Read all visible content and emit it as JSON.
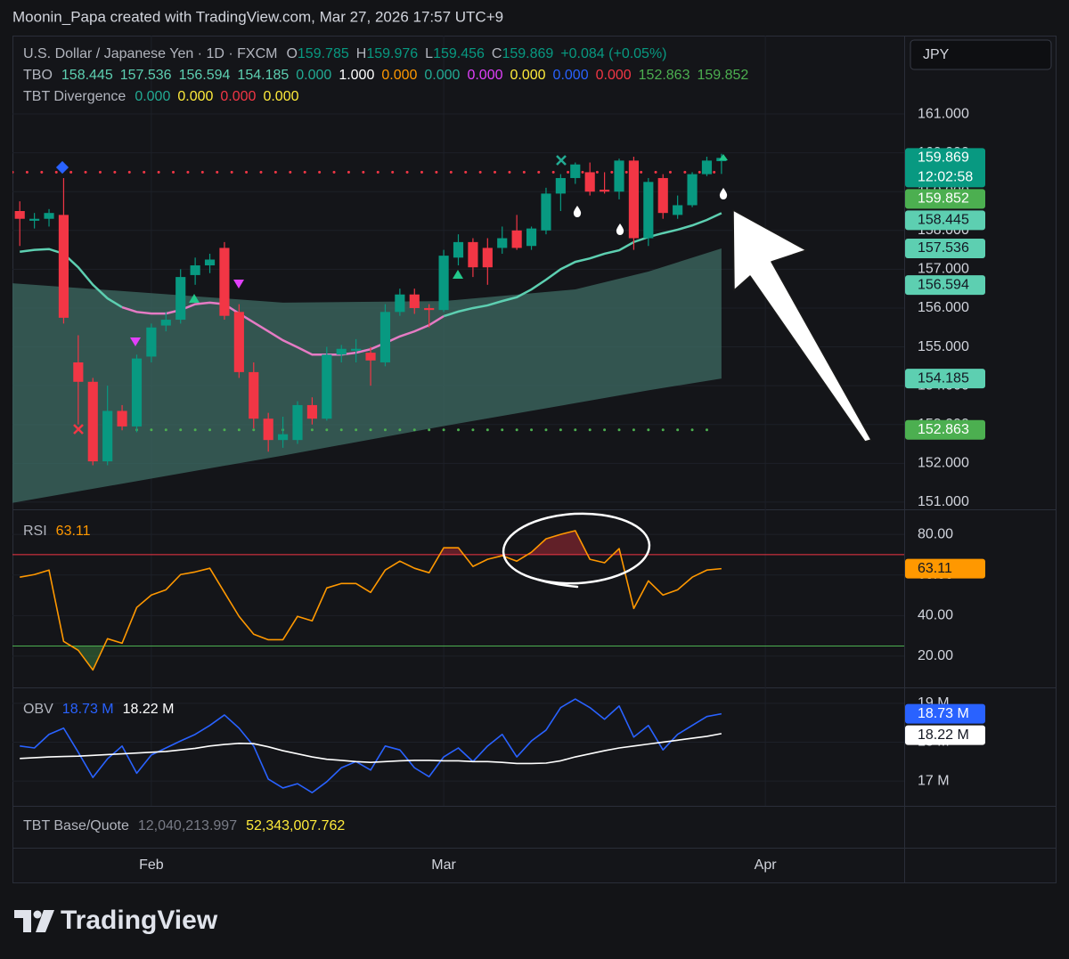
{
  "header": {
    "credit": "Moonin_Papa created with TradingView.com, Mar 27, 2026 17:57 UTC+9",
    "symbol": "U.S. Dollar / Japanese Yen · 1D · FXCM",
    "open_label": "O",
    "high_label": "H",
    "low_label": "L",
    "close_label": "C",
    "change": "+0.084 (+0.05%)",
    "currency": "JPY",
    "countdown": "12:02:58"
  },
  "tbo": {
    "name": "TBO",
    "items": [
      {
        "value": 158.445,
        "label": "158.445",
        "color": "#5dcfb1"
      },
      {
        "value": 157.536,
        "label": "157.536",
        "color": "#5dcfb1"
      },
      {
        "value": 156.594,
        "label": "156.594",
        "color": "#5dcfb1"
      },
      {
        "value": 154.185,
        "label": "154.185",
        "color": "#5dcfb1"
      },
      {
        "value": 0,
        "label": "0.000",
        "color": "#22ab94"
      },
      {
        "value": 1,
        "label": "1.000",
        "color": "#ffffff"
      },
      {
        "value": 0,
        "label": "0.000",
        "color": "#ff9800"
      },
      {
        "value": 0,
        "label": "0.000",
        "color": "#22ab94"
      },
      {
        "value": 0,
        "label": "0.000",
        "color": "#e040fb"
      },
      {
        "value": 0,
        "label": "0.000",
        "color": "#ffeb3b"
      },
      {
        "value": 0,
        "label": "0.000",
        "color": "#2962ff"
      },
      {
        "value": 0,
        "label": "0.000",
        "color": "#f23645"
      },
      {
        "value": 152.863,
        "label": "152.863",
        "color": "#4caf50"
      },
      {
        "value": 159.852,
        "label": "159.852",
        "color": "#4caf50"
      }
    ]
  },
  "divergence": {
    "name": "TBT Divergence",
    "items": [
      {
        "value": 0,
        "label": "0.000",
        "color": "#22ab94"
      },
      {
        "value": 0,
        "label": "0.000",
        "color": "#ffeb3b"
      },
      {
        "value": 0,
        "label": "0.000",
        "color": "#f23645"
      },
      {
        "value": 0,
        "label": "0.000",
        "color": "#ffeb3b"
      }
    ]
  },
  "base_quote": {
    "name": "TBT Base/Quote",
    "values": [
      "12,040,213.997",
      "52,343,007.762"
    ],
    "colors": [
      "#787b86",
      "#ffeb3b"
    ]
  },
  "brand": "TradingView",
  "chart_data": [
    {
      "type": "candlestick",
      "xlim": [
        -0.5,
        60.5
      ],
      "xticks": [
        {
          "value": 9,
          "label": "Feb"
        },
        {
          "value": 29,
          "label": "Mar"
        },
        {
          "value": 51,
          "label": "Apr"
        }
      ],
      "ylim": [
        150.86,
        163.02
      ],
      "yticks": [
        {
          "value": 151,
          "label": "151.000"
        },
        {
          "value": 152,
          "label": "152.000"
        },
        {
          "value": 153,
          "label": "153.000"
        },
        {
          "value": 154,
          "label": "154.000"
        },
        {
          "value": 155,
          "label": "155.000"
        },
        {
          "value": 156,
          "label": "156.000"
        },
        {
          "value": 157,
          "label": "157.000"
        },
        {
          "value": 158,
          "label": "158.000"
        },
        {
          "value": 159,
          "label": "159.000"
        },
        {
          "value": 160,
          "label": "160.000"
        },
        {
          "value": 161,
          "label": "161.000"
        }
      ],
      "grid": true,
      "up_color": "#089981",
      "down_color": "#f23645",
      "open": [
        158.5,
        158.25,
        158.3,
        158.4,
        154.6,
        154.1,
        152.05,
        153.35,
        152.95,
        154.75,
        155.55,
        155.7,
        156.85,
        157.1,
        157.55,
        155.9,
        154.35,
        153.15,
        152.6,
        152.6,
        153.5,
        153.15,
        154.8,
        154.9,
        154.85,
        154.6,
        155.9,
        156.35,
        156.0,
        155.95,
        157.3,
        157.7,
        157.55,
        157.55,
        158.0,
        157.6,
        158.0,
        158.95,
        159.35,
        159.5,
        159.05,
        159.0,
        159.8,
        157.8,
        159.35,
        158.4,
        158.65,
        159.45,
        159.785
      ],
      "high": [
        158.75,
        158.45,
        158.55,
        159.35,
        155.3,
        154.2,
        154.0,
        153.5,
        154.8,
        155.6,
        155.9,
        157.0,
        157.3,
        157.4,
        157.7,
        156.1,
        154.6,
        153.3,
        153.2,
        153.6,
        153.7,
        155.0,
        155.05,
        155.2,
        155.0,
        156.1,
        156.5,
        156.5,
        156.1,
        157.5,
        157.9,
        157.8,
        157.8,
        158.1,
        158.4,
        158.1,
        159.1,
        159.45,
        159.75,
        159.75,
        159.5,
        159.85,
        159.9,
        159.35,
        159.45,
        158.9,
        159.5,
        159.9,
        159.976
      ],
      "low": [
        157.6,
        158.05,
        158.1,
        155.6,
        153.0,
        151.95,
        151.95,
        152.85,
        152.8,
        154.6,
        155.4,
        155.6,
        156.6,
        156.9,
        155.7,
        154.2,
        152.9,
        152.3,
        152.4,
        152.5,
        153.0,
        153.1,
        154.6,
        154.6,
        154.0,
        154.5,
        155.8,
        155.85,
        155.5,
        155.9,
        157.1,
        156.8,
        156.6,
        157.4,
        157.5,
        157.5,
        157.9,
        158.5,
        159.2,
        158.9,
        158.95,
        158.8,
        157.5,
        157.6,
        158.3,
        158.3,
        158.6,
        159.4,
        159.456
      ],
      "close": [
        158.3,
        158.3,
        158.45,
        155.75,
        154.1,
        152.05,
        153.35,
        152.95,
        154.7,
        155.5,
        155.7,
        156.8,
        157.1,
        157.25,
        155.8,
        154.35,
        153.15,
        152.6,
        152.75,
        153.5,
        153.15,
        154.8,
        154.95,
        154.95,
        154.65,
        155.9,
        156.35,
        156.0,
        155.95,
        157.35,
        157.7,
        157.05,
        157.05,
        157.8,
        157.55,
        158.05,
        158.95,
        159.35,
        159.7,
        159.0,
        159.0,
        159.8,
        157.8,
        159.25,
        158.45,
        158.65,
        159.45,
        159.8,
        159.869
      ],
      "series": [
        {
          "color": "#5dcfb1",
          "values": [
            157.45,
            157.5,
            157.52,
            157.4,
            157.05,
            156.6,
            156.25,
            156.02,
            null,
            null,
            null,
            null,
            null,
            null,
            null,
            null,
            null,
            null,
            null,
            null,
            null,
            null,
            null,
            null,
            null,
            null,
            null,
            null,
            null,
            155.79,
            155.91,
            156.0,
            156.07,
            156.18,
            156.28,
            156.48,
            156.73,
            157.0,
            157.19,
            157.28,
            157.4,
            157.49,
            157.7,
            157.83,
            157.93,
            158.02,
            158.13,
            158.27,
            158.445
          ]
        },
        {
          "color": "#e57bc4",
          "values": [
            null,
            null,
            null,
            null,
            null,
            null,
            null,
            156.02,
            155.9,
            155.86,
            155.86,
            155.95,
            156.1,
            156.14,
            156.1,
            155.86,
            155.63,
            155.4,
            155.17,
            154.99,
            154.8,
            154.8,
            154.8,
            154.85,
            154.94,
            155.1,
            155.27,
            155.4,
            155.56,
            155.79,
            null,
            null,
            null,
            null,
            null,
            null,
            null,
            null,
            null,
            null,
            null,
            null,
            null,
            null,
            null,
            null,
            null,
            null,
            null
          ]
        }
      ],
      "cloud": {
        "color": "#3d6b63",
        "x": [
          -0.5,
          18,
          29,
          38,
          43,
          48
        ],
        "upper": [
          156.64,
          156.14,
          156.18,
          156.48,
          156.94,
          157.536
        ],
        "lower": [
          150.98,
          152.2,
          152.96,
          153.55,
          153.88,
          154.185
        ]
      },
      "levels": [
        {
          "value": 159.5,
          "color": "#f23645",
          "from": -0.5,
          "to": 48
        },
        {
          "value": 152.863,
          "color": "#4caf50",
          "from": 8,
          "to": 48
        }
      ]
    },
    {
      "type": "line",
      "title": "RSI",
      "xlim": [
        -0.5,
        60.5
      ],
      "ylim": [
        5.5,
        91
      ],
      "yticks": [
        {
          "value": 20,
          "label": "20.00"
        },
        {
          "value": 40,
          "label": "40.00"
        },
        {
          "value": 60,
          "label": "60.00"
        },
        {
          "value": 80,
          "label": "80.00"
        }
      ],
      "grid": true,
      "levels": [
        {
          "value": 70,
          "color": "#f23645"
        },
        {
          "value": 25,
          "color": "#4caf50"
        }
      ],
      "series": [
        {
          "color": "#ff9800",
          "values": [
            58.9,
            60.2,
            62.4,
            27.3,
            22.9,
            13.2,
            28.6,
            26.4,
            44,
            50.1,
            52.7,
            60.2,
            61.5,
            63.3,
            51.4,
            39.6,
            30.8,
            28.1,
            28.1,
            39.6,
            37.4,
            53.6,
            55.8,
            55.8,
            51.4,
            62.4,
            66.8,
            63.3,
            61.1,
            73.4,
            73.4,
            64.2,
            67.7,
            69.5,
            66.8,
            71.2,
            77.8,
            80,
            81.8,
            67.7,
            66,
            73,
            43.5,
            57.1,
            50.1,
            52.7,
            58.9,
            62.4,
            63.11
          ]
        }
      ]
    },
    {
      "type": "line",
      "title": "OBV",
      "xlim": [
        -0.5,
        60.5
      ],
      "ylim": [
        16.36,
        19.34
      ],
      "yticks": [
        {
          "value": 17,
          "label": "17 M"
        },
        {
          "value": 18,
          "label": "18 M"
        },
        {
          "value": 19,
          "label": "19 M"
        }
      ],
      "grid": true,
      "levels": [],
      "series": [
        {
          "label": "18.73 M",
          "color": "#2962ff",
          "values": [
            17.9,
            17.85,
            18.2,
            18.36,
            17.74,
            17.09,
            17.57,
            17.9,
            17.2,
            17.67,
            17.85,
            18.03,
            18.2,
            18.43,
            18.7,
            18.36,
            17.9,
            17.05,
            16.82,
            16.93,
            16.7,
            16.98,
            17.34,
            17.5,
            17.28,
            17.9,
            17.8,
            17.34,
            17.11,
            17.62,
            17.85,
            17.5,
            17.9,
            18.2,
            17.62,
            18.03,
            18.31,
            18.89,
            19.11,
            18.89,
            18.59,
            18.93,
            18.13,
            18.43,
            17.8,
            18.2,
            18.43,
            18.66,
            18.73
          ]
        },
        {
          "label": "18.22 M",
          "color": "#ffffff",
          "values": [
            17.58,
            17.6,
            17.62,
            17.63,
            17.64,
            17.66,
            17.68,
            17.7,
            17.72,
            17.74,
            17.76,
            17.8,
            17.84,
            17.9,
            17.94,
            17.97,
            17.96,
            17.88,
            17.78,
            17.7,
            17.62,
            17.56,
            17.53,
            17.5,
            17.48,
            17.5,
            17.52,
            17.53,
            17.53,
            17.52,
            17.52,
            17.5,
            17.5,
            17.48,
            17.45,
            17.45,
            17.46,
            17.52,
            17.62,
            17.7,
            17.78,
            17.85,
            17.9,
            17.95,
            18.0,
            18.05,
            18.1,
            18.15,
            18.22
          ]
        }
      ]
    }
  ]
}
